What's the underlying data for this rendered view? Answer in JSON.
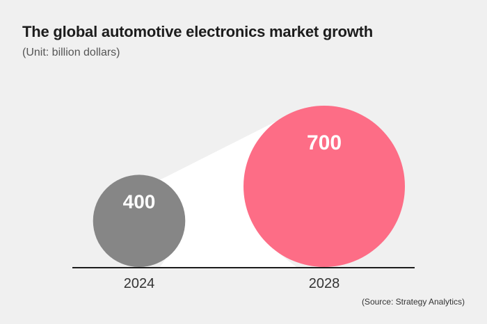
{
  "chart_data": {
    "type": "bubble",
    "title": "The global automotive electronics market growth",
    "subtitle": "(Unit: billion dollars)",
    "categories": [
      "2024",
      "2028"
    ],
    "values": [
      400,
      700
    ],
    "value_labels": [
      "400",
      "700"
    ],
    "source": "(Source: Strategy Analytics)",
    "colors": [
      "#868686",
      "#fd6d86"
    ]
  },
  "colors": {
    "background": "#f0f0f0",
    "baseline": "#1c1c1c",
    "connector": "#ffffff"
  }
}
